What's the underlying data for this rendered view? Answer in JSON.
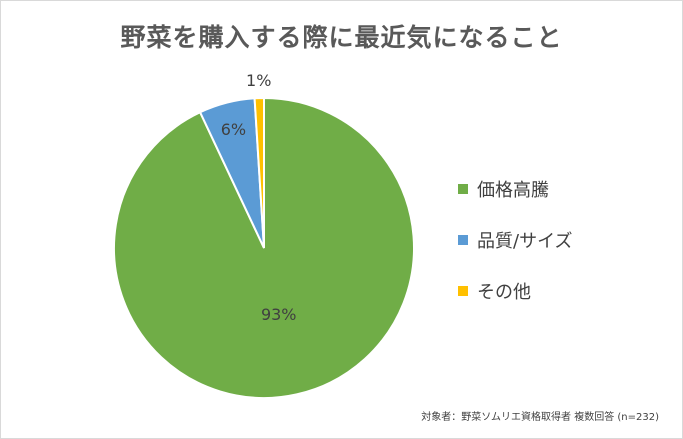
{
  "chart_data": {
    "type": "pie",
    "title": "野菜を購入する際に最近気になること",
    "categories": [
      "価格高騰",
      "品質/サイズ",
      "その他"
    ],
    "values": [
      93,
      6,
      1
    ],
    "data_labels": [
      "93%",
      "6%",
      "1%"
    ],
    "colors": [
      "#70ad47",
      "#5b9bd5",
      "#ffc000"
    ],
    "legend_position": "right",
    "footnote": "対象者：野菜ソムリエ資格取得者 複数回答 (n=232)"
  }
}
